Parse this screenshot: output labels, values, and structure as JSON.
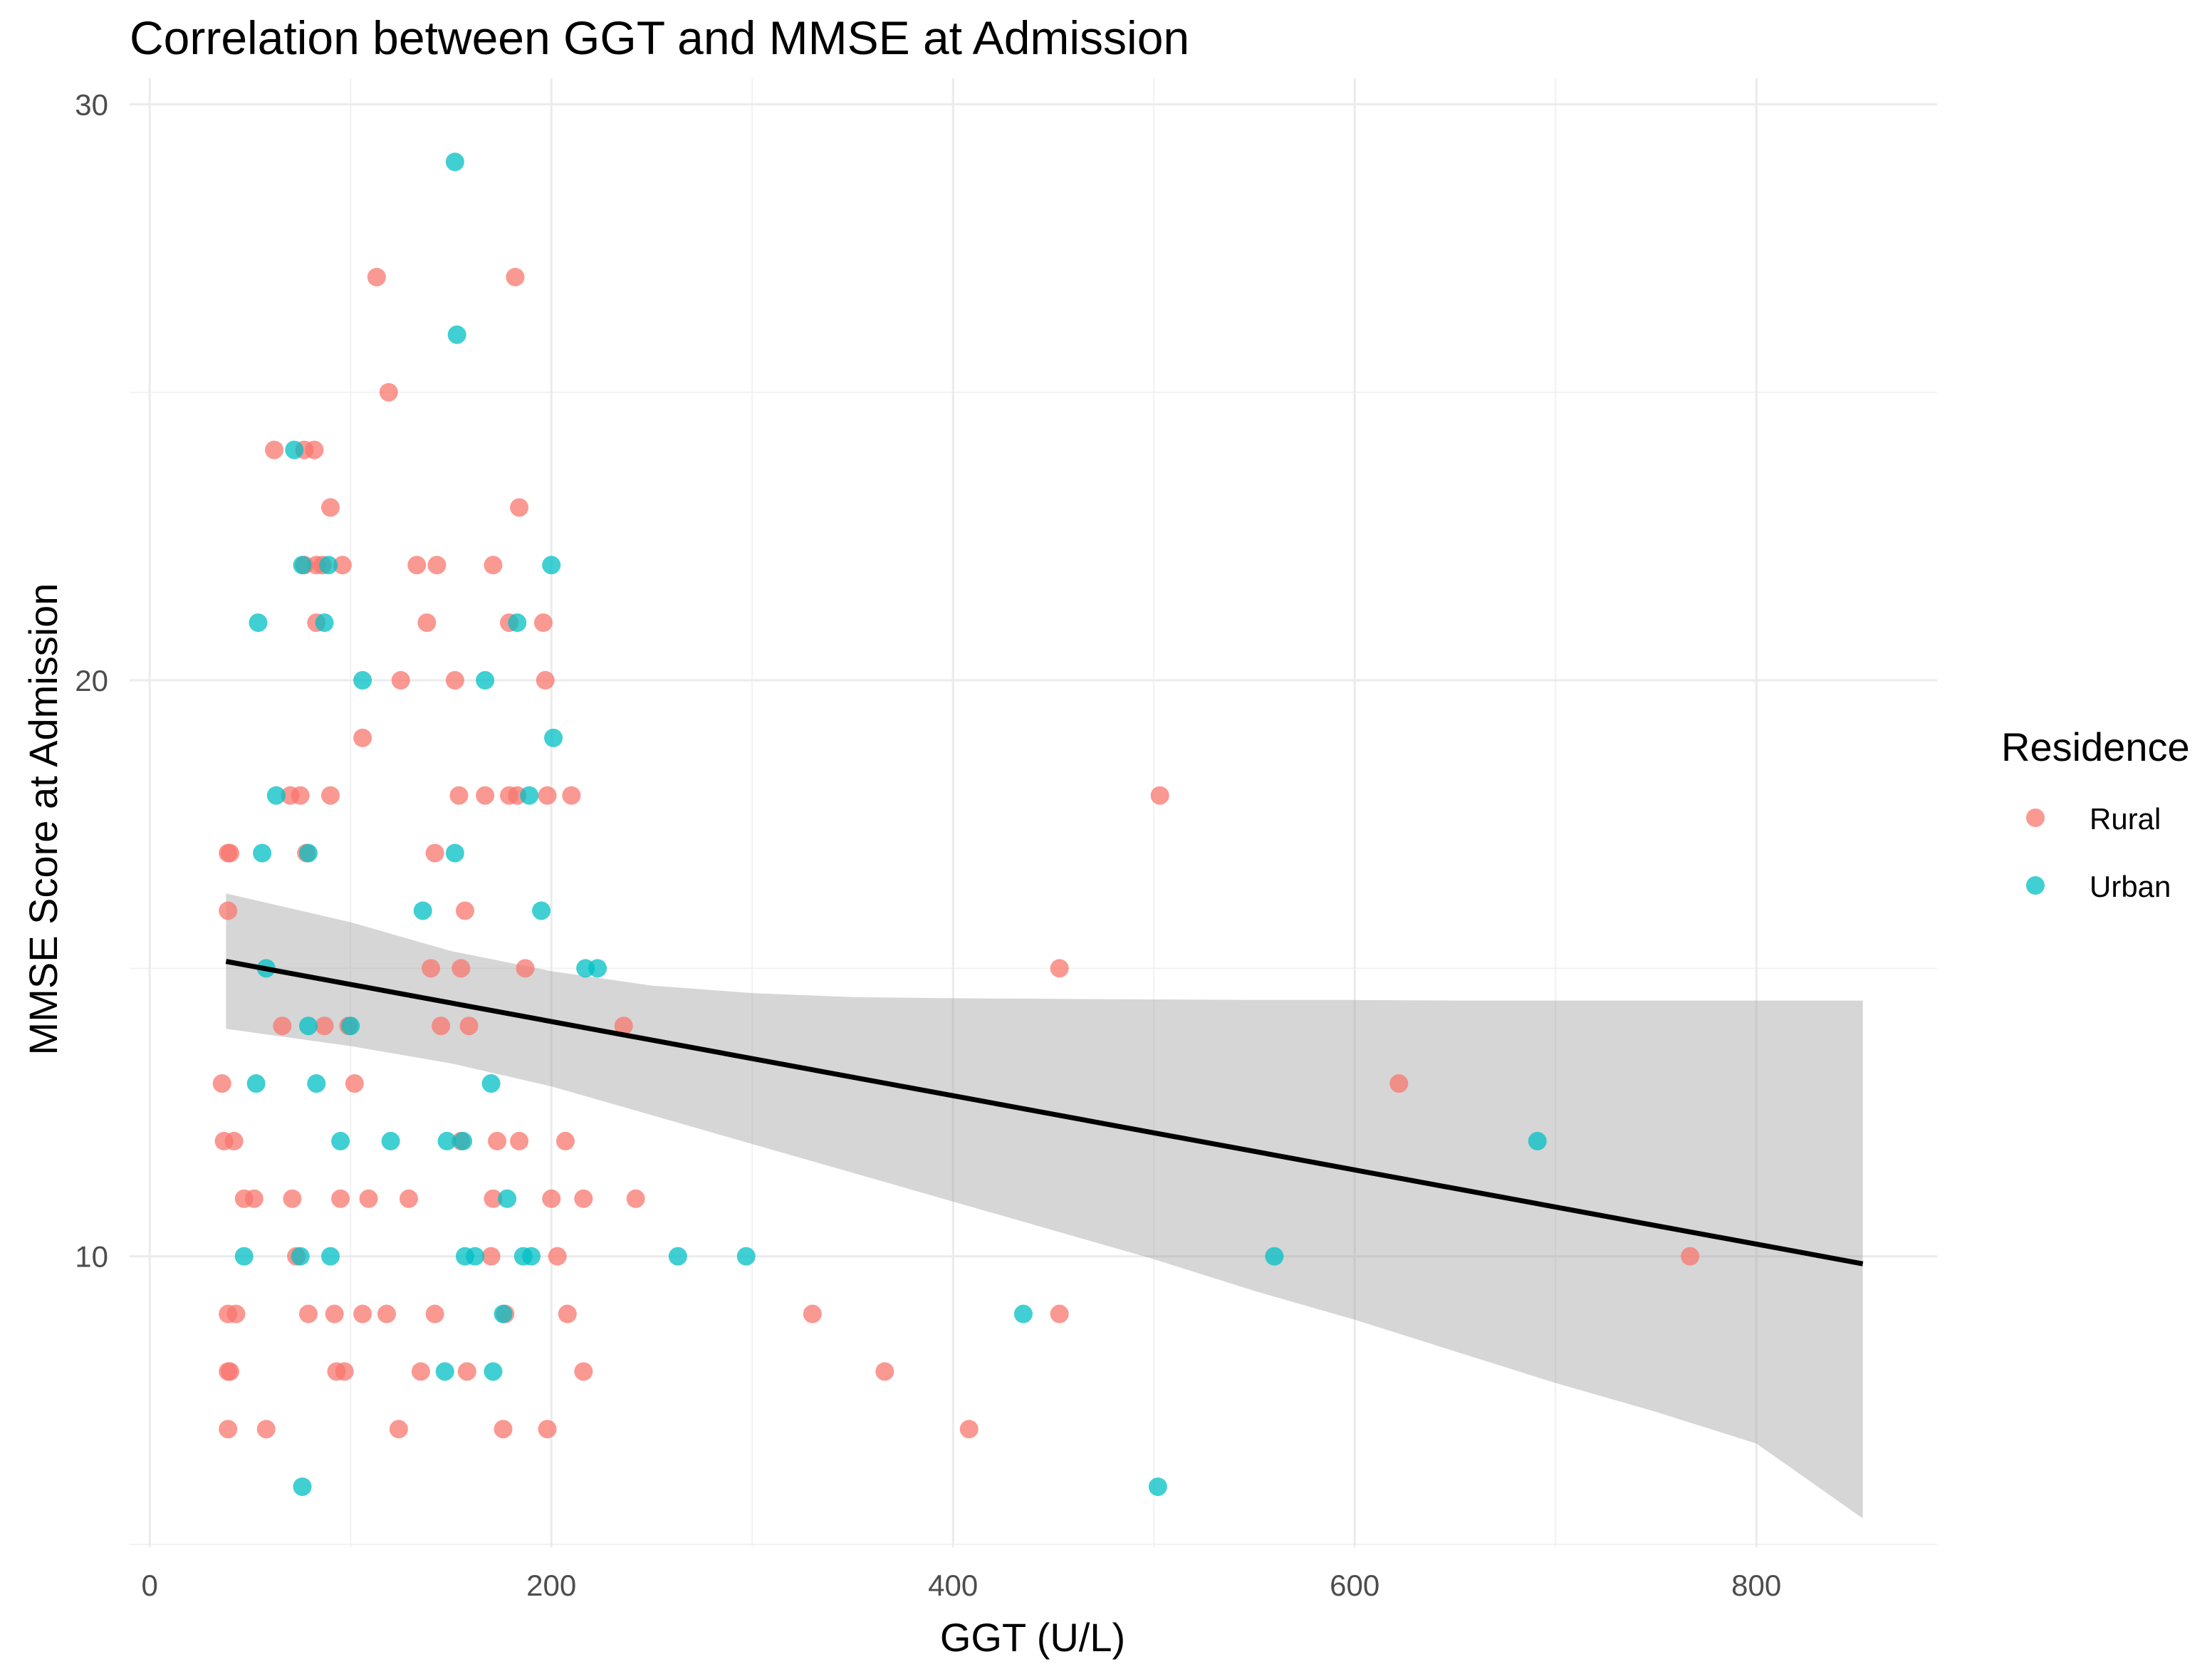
{
  "chart_data": {
    "type": "scatter",
    "title": "Correlation between GGT and MMSE at Admission",
    "xlabel": "GGT (U/L)",
    "ylabel": "MMSE Score at Admission",
    "xlim": [
      -10,
      890
    ],
    "ylim": [
      4.95,
      30.45
    ],
    "x_ticks": [
      0,
      200,
      400,
      600,
      800
    ],
    "x_tick_labels": [
      "0",
      "200",
      "400",
      "600",
      "800"
    ],
    "y_ticks": [
      10,
      20,
      30
    ],
    "y_tick_labels": [
      "10",
      "20",
      "30"
    ],
    "grid": true,
    "legend": {
      "title": "Residence",
      "position": "right"
    },
    "series": [
      {
        "name": "Rural",
        "color": "#F8766D",
        "points": [
          [
            113,
            27
          ],
          [
            182,
            27
          ],
          [
            119,
            25
          ],
          [
            62,
            24
          ],
          [
            77,
            24
          ],
          [
            82,
            24
          ],
          [
            90,
            23
          ],
          [
            184,
            23
          ],
          [
            77,
            22
          ],
          [
            83,
            22
          ],
          [
            86,
            22
          ],
          [
            96,
            22
          ],
          [
            133,
            22
          ],
          [
            143,
            22
          ],
          [
            171,
            22
          ],
          [
            83,
            21
          ],
          [
            138,
            21
          ],
          [
            179,
            21
          ],
          [
            196,
            21
          ],
          [
            125,
            20
          ],
          [
            152,
            20
          ],
          [
            197,
            20
          ],
          [
            106,
            19
          ],
          [
            70,
            18
          ],
          [
            75,
            18
          ],
          [
            90,
            18
          ],
          [
            154,
            18
          ],
          [
            167,
            18
          ],
          [
            179,
            18
          ],
          [
            183,
            18
          ],
          [
            198,
            18
          ],
          [
            210,
            18
          ],
          [
            503,
            18
          ],
          [
            39,
            17
          ],
          [
            40,
            17
          ],
          [
            78,
            17
          ],
          [
            142,
            17
          ],
          [
            39,
            16
          ],
          [
            157,
            16
          ],
          [
            140,
            15
          ],
          [
            155,
            15
          ],
          [
            187,
            15
          ],
          [
            453,
            15
          ],
          [
            66,
            14
          ],
          [
            87,
            14
          ],
          [
            99,
            14
          ],
          [
            145,
            14
          ],
          [
            159,
            14
          ],
          [
            236,
            14
          ],
          [
            36,
            13
          ],
          [
            102,
            13
          ],
          [
            622,
            13
          ],
          [
            37,
            12
          ],
          [
            42,
            12
          ],
          [
            155,
            12
          ],
          [
            173,
            12
          ],
          [
            184,
            12
          ],
          [
            207,
            12
          ],
          [
            47,
            11
          ],
          [
            52,
            11
          ],
          [
            71,
            11
          ],
          [
            95,
            11
          ],
          [
            109,
            11
          ],
          [
            129,
            11
          ],
          [
            171,
            11
          ],
          [
            200,
            11
          ],
          [
            216,
            11
          ],
          [
            242,
            11
          ],
          [
            73,
            10
          ],
          [
            170,
            10
          ],
          [
            203,
            10
          ],
          [
            767,
            10
          ],
          [
            39,
            9
          ],
          [
            43,
            9
          ],
          [
            79,
            9
          ],
          [
            92,
            9
          ],
          [
            106,
            9
          ],
          [
            118,
            9
          ],
          [
            142,
            9
          ],
          [
            177,
            9
          ],
          [
            208,
            9
          ],
          [
            330,
            9
          ],
          [
            453,
            9
          ],
          [
            39,
            8
          ],
          [
            40,
            8
          ],
          [
            93,
            8
          ],
          [
            97,
            8
          ],
          [
            135,
            8
          ],
          [
            158,
            8
          ],
          [
            216,
            8
          ],
          [
            366,
            8
          ],
          [
            39,
            7
          ],
          [
            58,
            7
          ],
          [
            124,
            7
          ],
          [
            176,
            7
          ],
          [
            198,
            7
          ],
          [
            408,
            7
          ]
        ]
      },
      {
        "name": "Urban",
        "color": "#00BFC4",
        "points": [
          [
            152,
            29
          ],
          [
            153,
            26
          ],
          [
            72,
            24
          ],
          [
            76,
            22
          ],
          [
            89,
            22
          ],
          [
            200,
            22
          ],
          [
            54,
            21
          ],
          [
            87,
            21
          ],
          [
            183,
            21
          ],
          [
            106,
            20
          ],
          [
            167,
            20
          ],
          [
            201,
            19
          ],
          [
            63,
            18
          ],
          [
            189,
            18
          ],
          [
            56,
            17
          ],
          [
            79,
            17
          ],
          [
            152,
            17
          ],
          [
            136,
            16
          ],
          [
            195,
            16
          ],
          [
            58,
            15
          ],
          [
            217,
            15
          ],
          [
            223,
            15
          ],
          [
            79,
            14
          ],
          [
            100,
            14
          ],
          [
            53,
            13
          ],
          [
            83,
            13
          ],
          [
            170,
            13
          ],
          [
            95,
            12
          ],
          [
            120,
            12
          ],
          [
            148,
            12
          ],
          [
            156,
            12
          ],
          [
            691,
            12
          ],
          [
            178,
            11
          ],
          [
            47,
            10
          ],
          [
            75,
            10
          ],
          [
            90,
            10
          ],
          [
            157,
            10
          ],
          [
            162,
            10
          ],
          [
            186,
            10
          ],
          [
            190,
            10
          ],
          [
            263,
            10
          ],
          [
            297,
            10
          ],
          [
            560,
            10
          ],
          [
            176,
            9
          ],
          [
            435,
            9
          ],
          [
            147,
            8
          ],
          [
            171,
            8
          ],
          [
            76,
            6
          ],
          [
            502,
            6
          ]
        ]
      }
    ],
    "fit_line": {
      "x": [
        38,
        853
      ],
      "y": [
        15.12,
        9.87
      ],
      "color": "#000000"
    },
    "confidence_band": {
      "x": [
        38,
        100,
        150,
        200,
        250,
        300,
        350,
        400,
        450,
        500,
        550,
        600,
        650,
        700,
        750,
        800,
        853
      ],
      "lower": [
        13.95,
        13.65,
        13.35,
        12.95,
        12.45,
        11.95,
        11.45,
        10.95,
        10.45,
        9.95,
        9.4,
        8.9,
        8.35,
        7.8,
        7.3,
        6.75,
        5.45
      ],
      "upper": [
        16.3,
        15.8,
        15.3,
        14.95,
        14.7,
        14.57,
        14.5,
        14.48,
        14.47,
        14.46,
        14.45,
        14.45,
        14.44,
        14.44,
        14.44,
        14.44,
        14.44
      ]
    }
  }
}
